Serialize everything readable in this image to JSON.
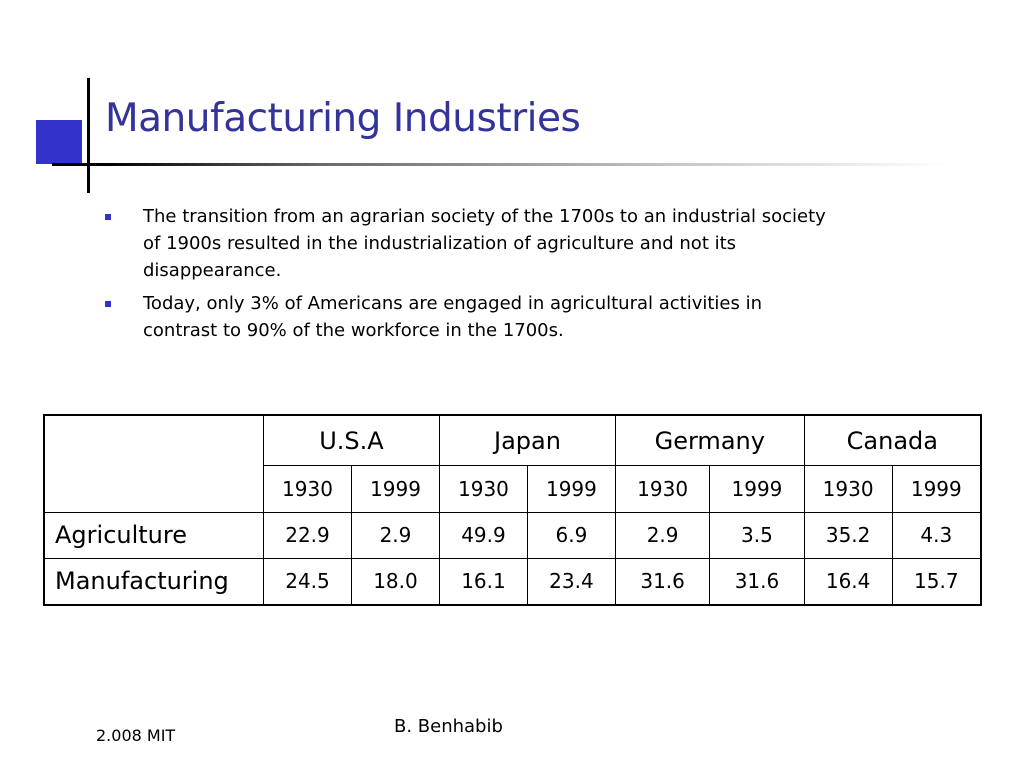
{
  "title": "Manufacturing Industries",
  "bullets": [
    "The transition from an agrarian society of the 1700s to an industrial society of 1900s resulted in the industrialization of agriculture and not its disappearance.",
    "Today, only 3% of Americans are engaged in agricultural activities in contrast to 90% of the workforce in the 1700s."
  ],
  "table": {
    "countries": [
      "U.S.A",
      "Japan",
      "Germany",
      "Canada"
    ],
    "years": [
      "1930",
      "1999",
      "1930",
      "1999",
      "1930",
      "1999",
      "1930",
      "1999"
    ],
    "rows": [
      {
        "label": "Agriculture",
        "values": [
          "22.9",
          "2.9",
          "49.9",
          "6.9",
          "2.9",
          "3.5",
          "35.2",
          "4.3"
        ]
      },
      {
        "label": "Manufacturing",
        "values": [
          "24.5",
          "18.0",
          "16.1",
          "23.4",
          "31.6",
          "31.6",
          "16.4",
          "15.7"
        ]
      }
    ]
  },
  "footer": {
    "course": "2.008 MIT",
    "author": "B. Benhabib"
  },
  "colors": {
    "title": "#333399",
    "accent": "#3333cc"
  }
}
